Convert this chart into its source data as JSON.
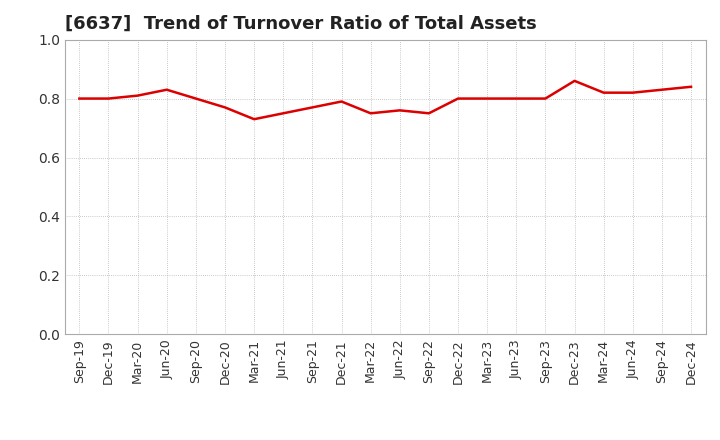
{
  "title": "[6637]  Trend of Turnover Ratio of Total Assets",
  "x_labels": [
    "Sep-19",
    "Dec-19",
    "Mar-20",
    "Jun-20",
    "Sep-20",
    "Dec-20",
    "Mar-21",
    "Jun-21",
    "Sep-21",
    "Dec-21",
    "Mar-22",
    "Jun-22",
    "Sep-22",
    "Dec-22",
    "Mar-23",
    "Jun-23",
    "Sep-23",
    "Dec-23",
    "Mar-24",
    "Jun-24",
    "Sep-24",
    "Dec-24"
  ],
  "y_values": [
    0.8,
    0.8,
    0.81,
    0.83,
    0.8,
    0.77,
    0.73,
    0.75,
    0.77,
    0.79,
    0.75,
    0.76,
    0.75,
    0.8,
    0.8,
    0.8,
    0.8,
    0.86,
    0.82,
    0.82,
    0.83,
    0.84
  ],
  "line_color": "#dd0000",
  "line_width": 1.8,
  "ylim": [
    0.0,
    1.0
  ],
  "yticks": [
    0.0,
    0.2,
    0.4,
    0.6,
    0.8,
    1.0
  ],
  "grid_color": "#999999",
  "background_color": "#ffffff",
  "title_fontsize": 13,
  "tick_fontsize": 9,
  "axis_label_color": "#333333",
  "spine_color": "#aaaaaa"
}
